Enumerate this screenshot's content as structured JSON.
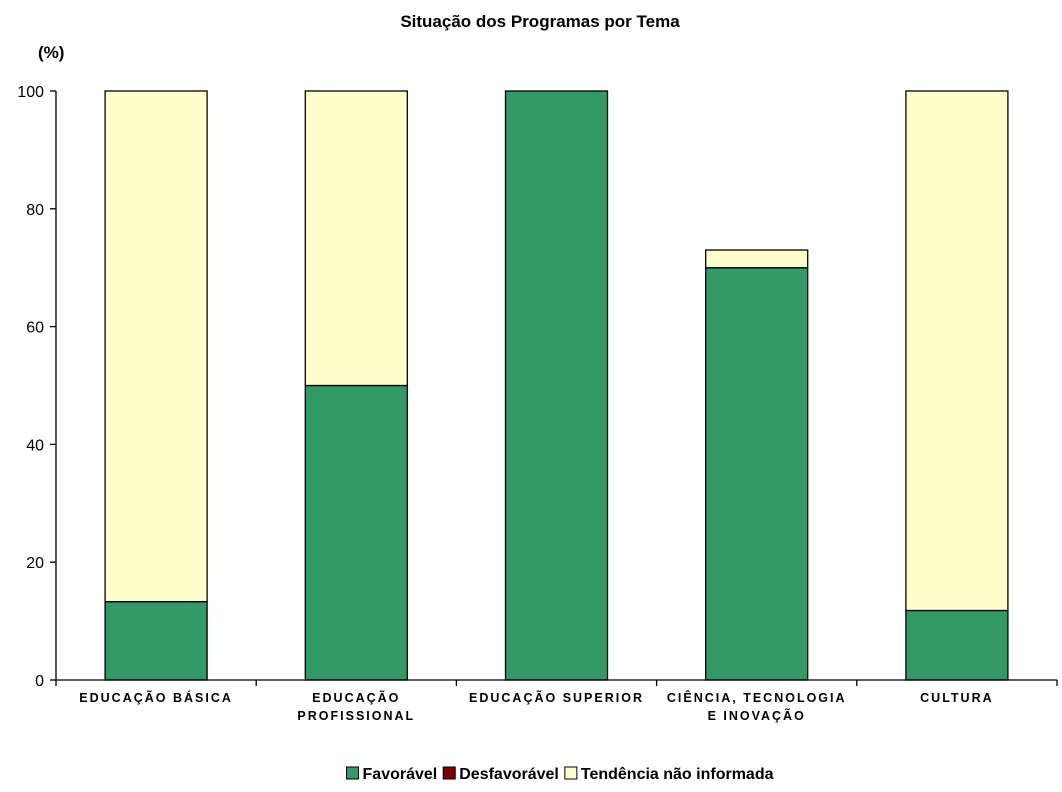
{
  "chart_data": {
    "type": "bar",
    "stacked": true,
    "title": "Situação dos Programas por Tema",
    "ylabel": "(%)",
    "xlabel": "",
    "ylim": [
      0,
      100
    ],
    "yticks": [
      0,
      20,
      40,
      60,
      80,
      100
    ],
    "categories": [
      [
        "EDUCAÇÃO BÁSICA"
      ],
      [
        "EDUCAÇÃO",
        "PROFISSIONAL"
      ],
      [
        "EDUCAÇÃO SUPERIOR"
      ],
      [
        "CIÊNCIA, TECNOLOGIA",
        "E INOVAÇÃO"
      ],
      [
        "CULTURA"
      ]
    ],
    "series": [
      {
        "name": "Favorável",
        "color": "#339966",
        "values": [
          13.3,
          50,
          100,
          70,
          11.8
        ]
      },
      {
        "name": "Desfavorável",
        "color": "#800000",
        "values": [
          0,
          0,
          0,
          0,
          0
        ]
      },
      {
        "name": "Tendência não informada",
        "color": "#FFFFCC",
        "values": [
          86.7,
          50,
          0,
          3,
          88.2
        ]
      }
    ],
    "grid": false,
    "legend_position": "bottom"
  }
}
